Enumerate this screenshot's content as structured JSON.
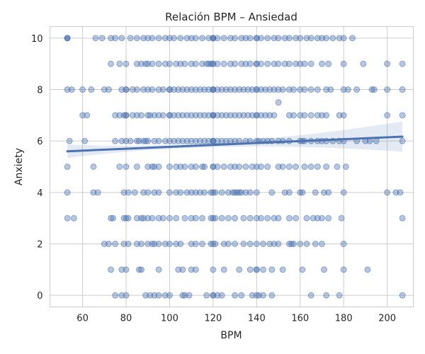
{
  "chart_data": {
    "type": "scatter",
    "title": "Relación BPM – Ansiedad",
    "xlabel": "BPM",
    "ylabel": "Anxiety",
    "xlim": [
      45,
      212
    ],
    "ylim": [
      -0.45,
      10.45
    ],
    "x_ticks": [
      60,
      80,
      100,
      120,
      140,
      160,
      180,
      200
    ],
    "y_ticks": [
      0,
      2,
      4,
      6,
      8,
      10
    ],
    "grid": true,
    "colors": {
      "points": "#4c72b0",
      "regression_line": "#4c72b0",
      "confidence_band": "#4c72b0",
      "grid": "#cccccc",
      "background": "#ffffff"
    },
    "regression": {
      "x": [
        53,
        207
      ],
      "y": [
        5.6,
        6.17
      ],
      "ci_lower": [
        5.34,
        5.58
      ],
      "ci_upper": [
        5.86,
        6.76
      ]
    },
    "points_by_anxiety": [
      {
        "y": 10,
        "x": [
          53,
          53,
          53,
          66,
          69,
          73,
          75,
          78,
          82,
          85,
          88,
          90,
          92,
          95,
          98,
          100,
          102,
          105,
          108,
          110,
          112,
          115,
          118,
          120,
          120,
          120,
          122,
          125,
          128,
          130,
          133,
          135,
          137,
          140,
          140,
          142,
          145,
          148,
          150,
          153,
          155,
          158,
          160,
          163,
          165,
          168,
          170,
          172,
          175,
          178,
          180,
          184
        ]
      },
      {
        "y": 9,
        "x": [
          73,
          77,
          80,
          85,
          87,
          89,
          90,
          92,
          95,
          98,
          100,
          103,
          105,
          107,
          110,
          112,
          115,
          117,
          118,
          119,
          120,
          120,
          122,
          125,
          128,
          130,
          133,
          135,
          137,
          140,
          140,
          142,
          145,
          148,
          150,
          153,
          155,
          158,
          160,
          162,
          165,
          170,
          173,
          180,
          189,
          200,
          207
        ]
      },
      {
        "y": 8,
        "x": [
          53,
          55,
          60,
          64,
          70,
          72,
          78,
          80,
          80,
          83,
          85,
          88,
          90,
          92,
          95,
          97,
          100,
          100,
          102,
          104,
          106,
          108,
          110,
          112,
          114,
          116,
          118,
          120,
          120,
          120,
          122,
          124,
          126,
          128,
          130,
          132,
          134,
          136,
          138,
          140,
          140,
          142,
          144,
          146,
          148,
          150,
          152,
          155,
          157,
          160,
          162,
          165,
          168,
          172,
          174,
          180,
          182,
          186,
          193,
          194,
          200,
          207
        ]
      },
      {
        "y": 7,
        "x": [
          60,
          62,
          75,
          77,
          79,
          80,
          80,
          83,
          85,
          87,
          90,
          91,
          93,
          95,
          97,
          100,
          100,
          102,
          104,
          106,
          108,
          110,
          112,
          114,
          116,
          118,
          120,
          120,
          120,
          122,
          124,
          126,
          128,
          130,
          132,
          134,
          136,
          138,
          140,
          140,
          142,
          144,
          146,
          148,
          155,
          157,
          160,
          162,
          165,
          168,
          170,
          172,
          178,
          180,
          200,
          207
        ]
      },
      {
        "y": 6,
        "x": [
          54,
          61,
          75,
          78,
          80,
          82,
          85,
          86,
          88,
          89,
          90,
          93,
          95,
          98,
          100,
          102,
          104,
          106,
          108,
          110,
          112,
          114,
          116,
          118,
          120,
          120,
          120,
          122,
          124,
          126,
          128,
          130,
          132,
          135,
          137,
          140,
          141,
          143,
          145,
          147,
          150,
          152,
          155,
          160,
          161,
          162,
          165,
          168,
          170,
          172,
          175,
          178,
          180,
          186,
          190,
          192,
          195,
          207
        ]
      },
      {
        "y": 5,
        "x": [
          53,
          65,
          77,
          80,
          85,
          90,
          92,
          93,
          95,
          100,
          103,
          105,
          107,
          110,
          112,
          115,
          116,
          120,
          120,
          122,
          125,
          128,
          130,
          132,
          135,
          138,
          140,
          142,
          145,
          150,
          152,
          155,
          158,
          162,
          165,
          168,
          172,
          177,
          181
        ]
      },
      {
        "y": 4,
        "x": [
          53,
          65,
          67,
          79,
          81,
          84,
          88,
          90,
          93,
          95,
          100,
          103,
          105,
          108,
          110,
          112,
          114,
          116,
          119,
          120,
          121,
          124,
          127,
          129,
          130,
          131,
          132,
          133,
          135,
          137,
          140,
          147,
          153,
          155,
          160,
          161,
          167,
          171,
          173,
          180,
          200,
          204,
          206
        ]
      },
      {
        "y": 3,
        "x": [
          53,
          56,
          73,
          74,
          79,
          80,
          81,
          85,
          87,
          88,
          90,
          92,
          95,
          97,
          100,
          103,
          107,
          110,
          112,
          115,
          119,
          120,
          121,
          124,
          127,
          130,
          134,
          137,
          140,
          142,
          145,
          148,
          150,
          155,
          158,
          163,
          166,
          168,
          170,
          173,
          179,
          207
        ]
      },
      {
        "y": 2,
        "x": [
          70,
          72,
          75,
          79,
          81,
          85,
          87,
          90,
          92,
          93,
          95,
          98,
          100,
          103,
          105,
          110,
          112,
          115,
          119,
          120,
          121,
          125,
          127,
          130,
          134,
          137,
          140,
          143,
          146,
          148,
          150,
          155,
          156,
          157,
          160,
          163,
          167,
          170,
          180
        ]
      },
      {
        "y": 1,
        "x": [
          73,
          78,
          80,
          86,
          87,
          95,
          104,
          106,
          110,
          112,
          120,
          125,
          132,
          137,
          140,
          140,
          143,
          147,
          152,
          161,
          171,
          180,
          191
        ]
      },
      {
        "y": 0,
        "x": [
          75,
          78,
          80,
          89,
          91,
          93,
          95,
          98,
          100,
          106,
          107,
          109,
          117,
          120,
          120,
          122,
          124,
          130,
          133,
          138,
          140,
          141,
          143,
          147,
          165,
          172,
          178,
          207
        ]
      }
    ],
    "extra_points": [
      {
        "x": 150,
        "y": 7.5
      }
    ]
  }
}
